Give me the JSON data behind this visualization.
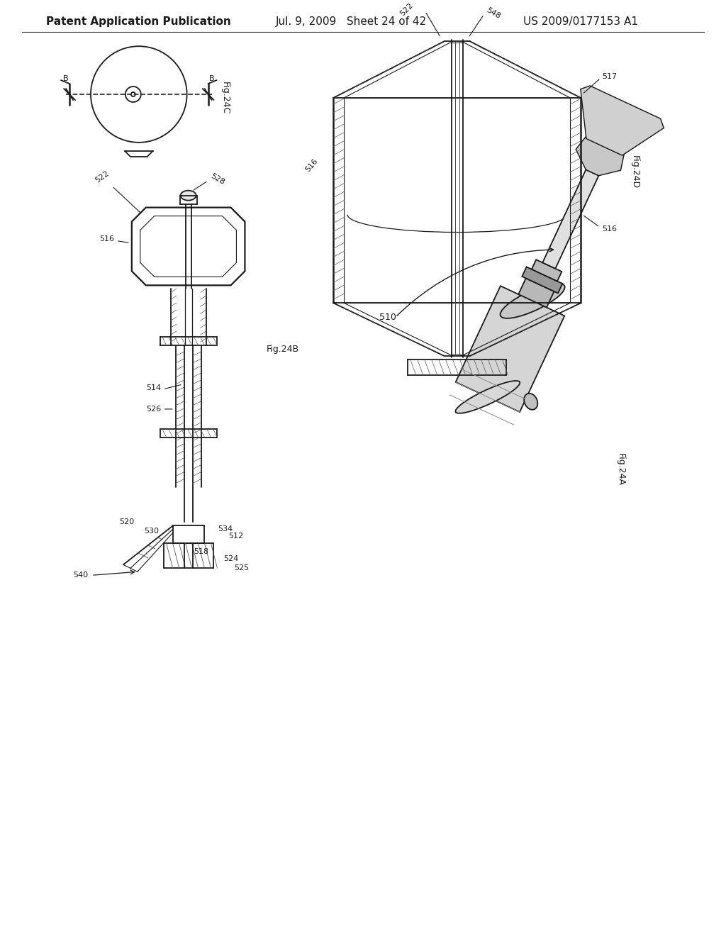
{
  "background_color": "#ffffff",
  "header_left": "Patent Application Publication",
  "header_center": "Jul. 9, 2009   Sheet 24 of 42",
  "header_right": "US 2009/0177153 A1",
  "line_color": "#1a1a1a",
  "text_color": "#1a1a1a",
  "font_size_header": 11,
  "font_size_fig": 9,
  "font_size_ref": 8
}
